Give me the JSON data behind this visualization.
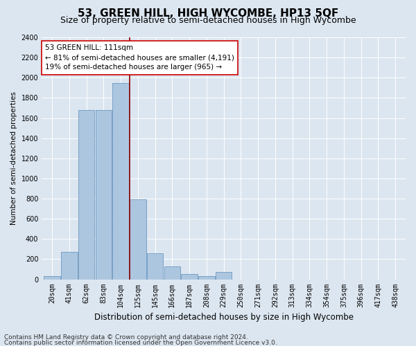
{
  "title": "53, GREEN HILL, HIGH WYCOMBE, HP13 5QF",
  "subtitle": "Size of property relative to semi-detached houses in High Wycombe",
  "xlabel": "Distribution of semi-detached houses by size in High Wycombe",
  "ylabel": "Number of semi-detached properties",
  "footnote1": "Contains HM Land Registry data © Crown copyright and database right 2024.",
  "footnote2": "Contains public sector information licensed under the Open Government Licence v3.0.",
  "categories": [
    "20sqm",
    "41sqm",
    "62sqm",
    "83sqm",
    "104sqm",
    "125sqm",
    "145sqm",
    "166sqm",
    "187sqm",
    "208sqm",
    "229sqm",
    "250sqm",
    "271sqm",
    "292sqm",
    "313sqm",
    "334sqm",
    "354sqm",
    "375sqm",
    "396sqm",
    "417sqm",
    "438sqm"
  ],
  "values": [
    30,
    270,
    1680,
    1680,
    1950,
    790,
    260,
    130,
    55,
    30,
    70,
    0,
    0,
    0,
    0,
    0,
    0,
    0,
    0,
    0,
    0
  ],
  "bar_color": "#adc6e0",
  "bar_edge_color": "#5b8db8",
  "vline_color": "#8b0000",
  "vline_x_data": 4.524,
  "annotation_text": "53 GREEN HILL: 111sqm\n← 81% of semi-detached houses are smaller (4,191)\n19% of semi-detached houses are larger (965) →",
  "annotation_box_facecolor": "#ffffff",
  "annotation_box_edgecolor": "#cc0000",
  "ylim": [
    0,
    2400
  ],
  "yticks": [
    0,
    200,
    400,
    600,
    800,
    1000,
    1200,
    1400,
    1600,
    1800,
    2000,
    2200,
    2400
  ],
  "background_color": "#dce6f0",
  "plot_background": "#dce6f0",
  "grid_color": "#ffffff",
  "title_fontsize": 11,
  "subtitle_fontsize": 9,
  "xlabel_fontsize": 8.5,
  "ylabel_fontsize": 7.5,
  "annot_fontsize": 7.5,
  "tick_fontsize": 7,
  "footnote_fontsize": 6.5
}
